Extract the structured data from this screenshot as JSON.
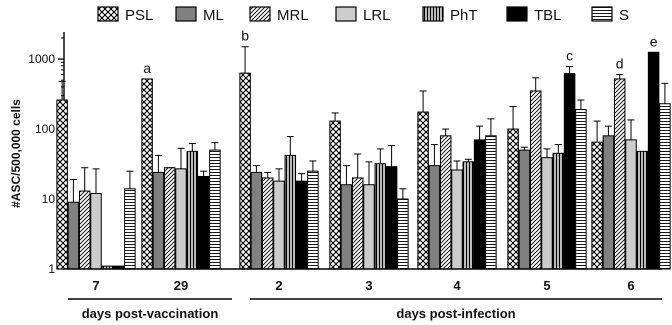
{
  "chart_data": {
    "type": "bar",
    "ylabel": "#ASC/500,000 cells",
    "yscale": "log",
    "ylim": [
      1,
      2000
    ],
    "y_ticks": [
      1,
      10,
      100,
      1000
    ],
    "y_tick_labels": [
      "1",
      "10",
      "100",
      "1000"
    ],
    "legend_position": "top",
    "categories": [
      "7",
      "29",
      "2",
      "3",
      "4",
      "5",
      "6"
    ],
    "periods": [
      {
        "label": "days post-vaccination",
        "categories": [
          "7",
          "29"
        ]
      },
      {
        "label": "days post-infection",
        "categories": [
          "2",
          "3",
          "4",
          "5",
          "6"
        ]
      }
    ],
    "series": [
      {
        "name": "PSL",
        "pattern": "crosshatch",
        "values": [
          260,
          520,
          630,
          130,
          175,
          100,
          65
        ],
        "errors": [
          480,
          null,
          1500,
          170,
          350,
          210,
          130
        ]
      },
      {
        "name": "ML",
        "pattern": "dark-gray",
        "values": [
          9,
          24,
          24,
          16,
          30,
          50,
          80
        ],
        "errors": [
          19,
          42,
          30,
          30,
          60,
          55,
          110
        ]
      },
      {
        "name": "MRL",
        "pattern": "diagonal",
        "values": [
          13,
          28,
          20,
          20,
          80,
          350,
          520
        ],
        "errors": [
          28,
          28,
          24,
          44,
          100,
          540,
          600
        ]
      },
      {
        "name": "LRL",
        "pattern": "light-gray",
        "values": [
          12,
          27,
          18,
          16,
          26,
          39,
          70
        ],
        "errors": [
          27,
          53,
          27,
          34,
          35,
          52,
          135
        ]
      },
      {
        "name": "PhT",
        "pattern": "vertical",
        "values": [
          1.1,
          48,
          42,
          32,
          34,
          45,
          48
        ],
        "errors": [
          null,
          62,
          78,
          52,
          37,
          60,
          null
        ]
      },
      {
        "name": "TBL",
        "pattern": "black",
        "values": [
          1.1,
          21,
          18,
          29,
          70,
          620,
          1250
        ],
        "errors": [
          null,
          25,
          23,
          58,
          110,
          780,
          null
        ]
      },
      {
        "name": "S",
        "pattern": "horizontal",
        "values": [
          14,
          50,
          25,
          10,
          80,
          190,
          230
        ],
        "errors": [
          25,
          64,
          35,
          14,
          140,
          260,
          450
        ]
      }
    ],
    "annotations": [
      {
        "text": "a",
        "category": "29",
        "series": "PSL"
      },
      {
        "text": "b",
        "category": "2",
        "series": "PSL"
      },
      {
        "text": "c",
        "category": "5",
        "series": "TBL"
      },
      {
        "text": "d",
        "category": "6",
        "series": "MRL"
      },
      {
        "text": "e",
        "category": "6",
        "series": "TBL"
      }
    ],
    "colors": {
      "dark-gray": "#808080",
      "light-gray": "#cccccc",
      "black": "#000000",
      "outline": "#000000"
    }
  }
}
